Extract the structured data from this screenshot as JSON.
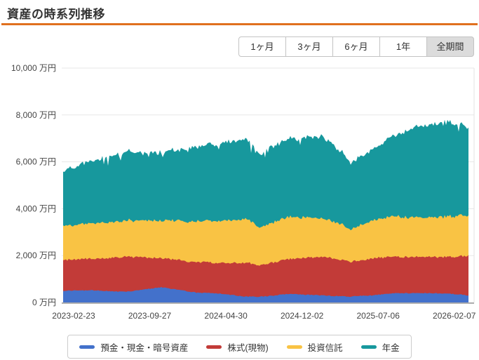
{
  "header": {
    "title": "資産の時系列推移",
    "accent_color": "#e0701e"
  },
  "controls": {
    "period_buttons": [
      {
        "key": "1month",
        "label": "1ヶ月",
        "active": false
      },
      {
        "key": "3months",
        "label": "3ヶ月",
        "active": false
      },
      {
        "key": "6months",
        "label": "6ヶ月",
        "active": false
      },
      {
        "key": "1year",
        "label": "1年",
        "active": false
      },
      {
        "key": "all",
        "label": "全期間",
        "active": true
      }
    ]
  },
  "chart_data": {
    "type": "area",
    "stacked": true,
    "title": "資産の時系列推移",
    "unit": "万円",
    "ylim": [
      0,
      10000
    ],
    "grid": true,
    "legend_position": "bottom",
    "y_ticks": [
      {
        "value": 0,
        "label": "0 万円"
      },
      {
        "value": 2000,
        "label": "2,000 万円"
      },
      {
        "value": 4000,
        "label": "4,000 万円"
      },
      {
        "value": 6000,
        "label": "6,000 万円"
      },
      {
        "value": 8000,
        "label": "8,000 万円"
      },
      {
        "value": 10000,
        "label": "10,000 万円"
      }
    ],
    "x_tick_labels": [
      "2023-02-23",
      "2023-09-27",
      "2024-04-30",
      "2024-12-02",
      "2025-07-06",
      "2026-02-07"
    ],
    "anchors_f": [
      0,
      0.07,
      0.156,
      0.242,
      0.329,
      0.381,
      0.45,
      0.47,
      0.488,
      0.51,
      0.554,
      0.64,
      0.69,
      0.709,
      0.73,
      0.761,
      0.813,
      0.882,
      0.952,
      1.0
    ],
    "series": [
      {
        "key": "deposits",
        "name": "預金・現金・暗号資産",
        "color": "#4371cb",
        "values": [
          500,
          520,
          450,
          650,
          420,
          390,
          250,
          250,
          250,
          280,
          360,
          300,
          260,
          250,
          280,
          300,
          390,
          400,
          380,
          300
        ]
      },
      {
        "key": "stocks",
        "name": "株式(現物)",
        "color": "#c23b38",
        "values": [
          1300,
          1350,
          1490,
          1250,
          1300,
          1310,
          1450,
          1400,
          1350,
          1400,
          1490,
          1640,
          1550,
          1480,
          1520,
          1580,
          1550,
          1540,
          1560,
          1700
        ]
      },
      {
        "key": "funds",
        "name": "投資信託",
        "color": "#f9c344",
        "values": [
          1450,
          1500,
          1550,
          1600,
          1750,
          1790,
          1880,
          1750,
          1620,
          1700,
          1790,
          1640,
          1500,
          1340,
          1500,
          1610,
          1730,
          1660,
          1730,
          1730
        ]
      },
      {
        "key": "pension",
        "name": "年金",
        "color": "#17989d",
        "values": [
          2350,
          2650,
          2930,
          2900,
          3200,
          3290,
          3430,
          3250,
          3110,
          3250,
          3320,
          3490,
          3100,
          2810,
          2950,
          3020,
          3400,
          3920,
          4030,
          3770
        ]
      }
    ]
  }
}
